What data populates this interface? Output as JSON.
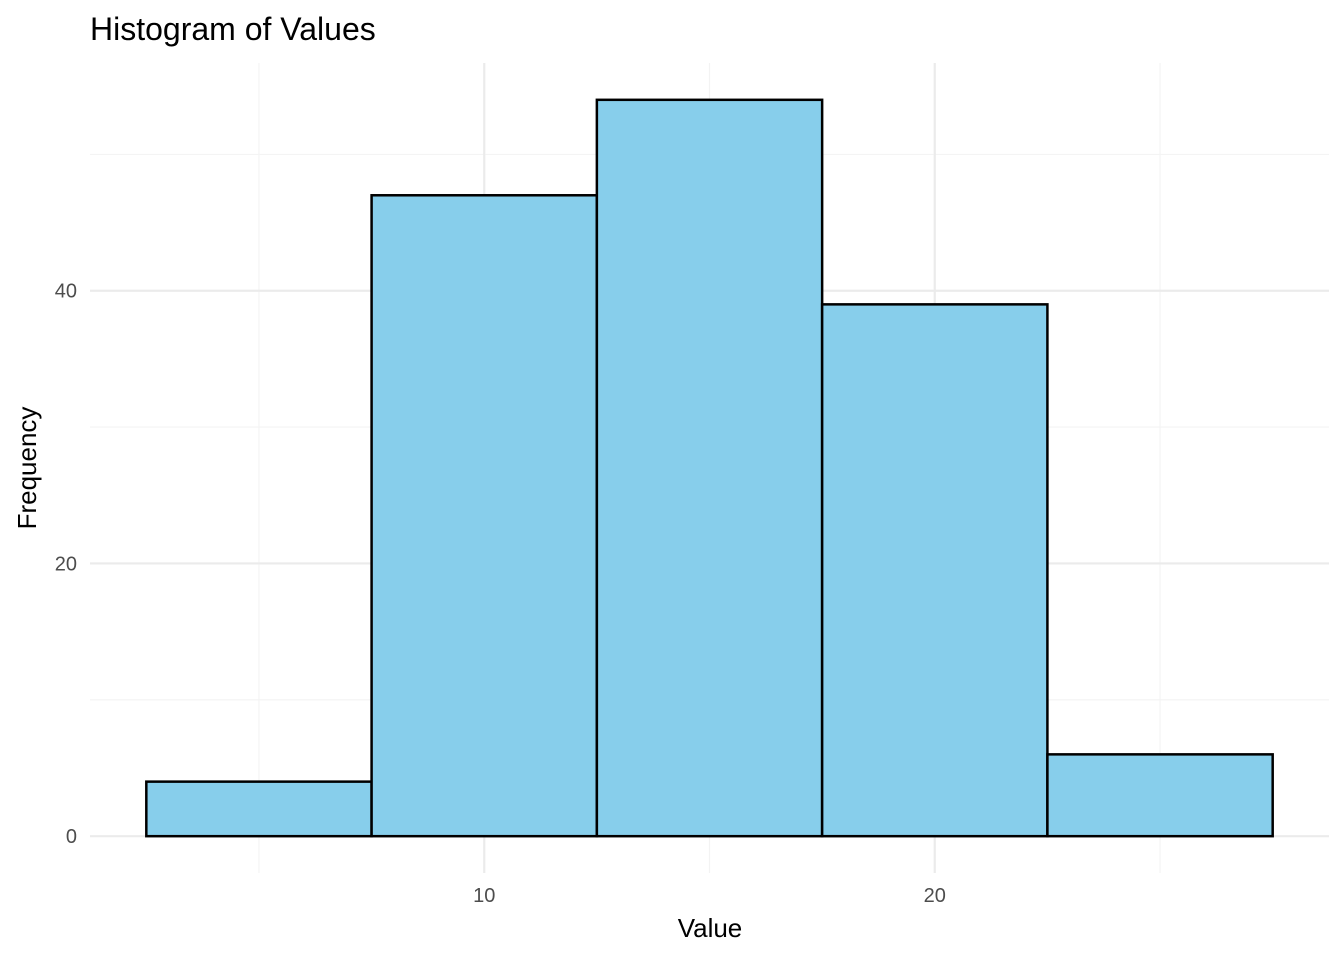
{
  "chart_data": {
    "type": "bar",
    "title": "Histogram of Values",
    "xlabel": "Value",
    "ylabel": "Frequency",
    "bins": [
      {
        "x0": 2.5,
        "x1": 7.5,
        "count": 4
      },
      {
        "x0": 7.5,
        "x1": 12.5,
        "count": 47
      },
      {
        "x0": 12.5,
        "x1": 17.5,
        "count": 54
      },
      {
        "x0": 17.5,
        "x1": 22.5,
        "count": 39
      },
      {
        "x0": 22.5,
        "x1": 27.5,
        "count": 6
      }
    ],
    "xlim": [
      1.25,
      28.75
    ],
    "ylim": [
      -2.7,
      56.7
    ],
    "x_ticks": [
      10,
      20
    ],
    "x_minor_ticks": [
      5,
      15,
      25
    ],
    "y_ticks": [
      0,
      20,
      40
    ],
    "y_minor_ticks": [
      10,
      30,
      50
    ],
    "grid": true,
    "bar_fill": "#87CEEB",
    "bar_outline": "#000000"
  }
}
